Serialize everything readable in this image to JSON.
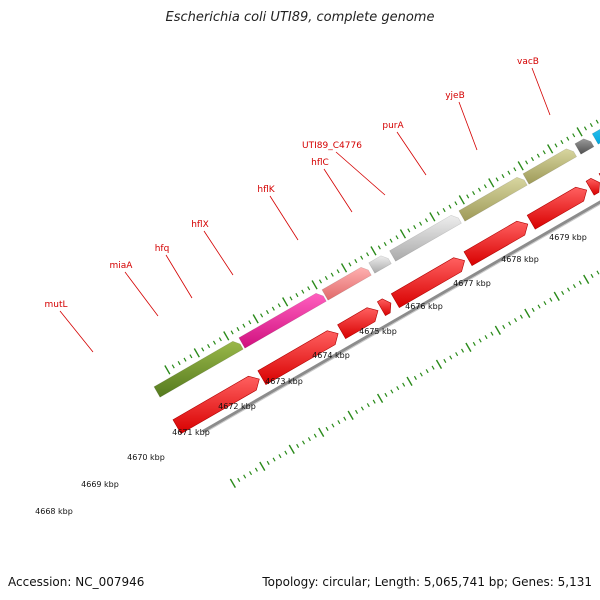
{
  "title": "Escherichia coli UTI89, complete genome",
  "footer": {
    "accession": "Accession: NC_007946",
    "summary": "Topology: circular; Length: 5,065,741 bp; Genes: 5,131"
  },
  "colors": {
    "label": "#d40000",
    "tick": "#2a8a1a",
    "cds_red": "#ee0000",
    "backbone": "#8c8c8c"
  },
  "gene_labels": [
    "mutL",
    "miaA",
    "hfq",
    "hflX",
    "hflK",
    "hflC",
    "UTI89_C4776",
    "purA",
    "yjeB",
    "vacB"
  ],
  "kbp_labels": [
    "4668 kbp",
    "4669 kbp",
    "4670 kbp",
    "4671 kbp",
    "4672 kbp",
    "4673 kbp",
    "4674 kbp",
    "4675 kbp",
    "4676 kbp",
    "4677 kbp",
    "4678 kbp",
    "4679 kbp"
  ]
}
